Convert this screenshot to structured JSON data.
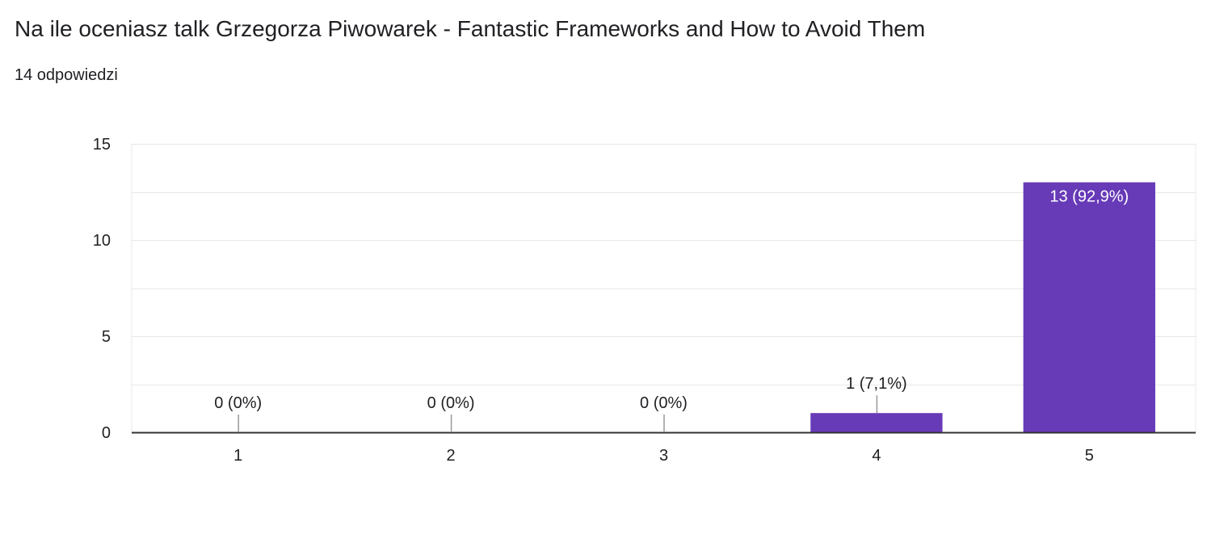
{
  "question": {
    "title": "Na ile oceniasz talk Grzegorza Piwowarek - Fantastic Frameworks and How to Avoid Them",
    "response_count": "14 odpowiedzi"
  },
  "colors": {
    "bar": "#673ab7",
    "grid": "#e8e8e8",
    "axis": "#333333",
    "text": "#202124"
  },
  "chart_data": {
    "type": "bar",
    "categories": [
      "1",
      "2",
      "3",
      "4",
      "5"
    ],
    "values": [
      0,
      0,
      0,
      1,
      13
    ],
    "data_labels": [
      "0 (0%)",
      "0 (0%)",
      "0 (0%)",
      "1 (7,1%)",
      "13 (92,9%)"
    ],
    "ylim": [
      0,
      15
    ],
    "yticks": [
      "0",
      "5",
      "10",
      "15"
    ],
    "grid": true,
    "legend": "none"
  }
}
